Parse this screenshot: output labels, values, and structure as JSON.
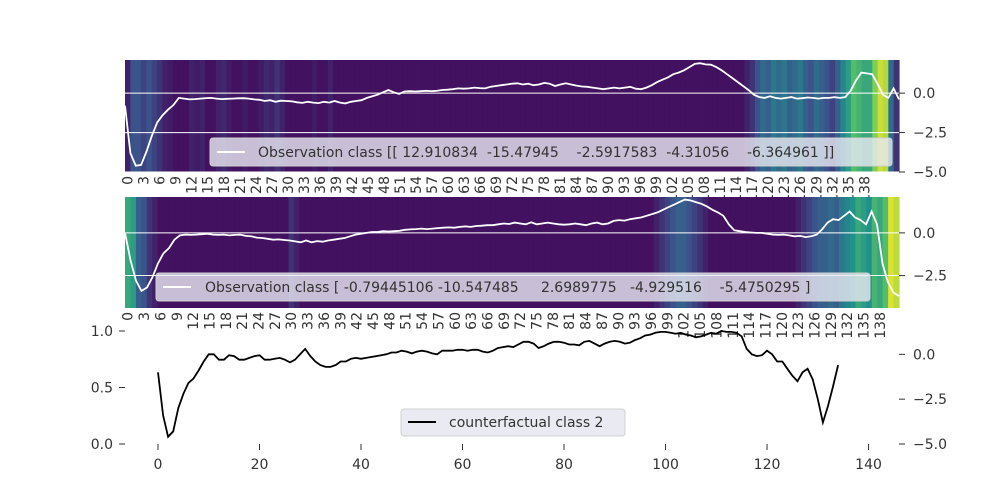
{
  "figure": {
    "background": "#ffffff"
  },
  "chart_data": [
    {
      "type": "heatmap",
      "panel": "top",
      "legend": {
        "label": "Observation class [[ 12.910834  -15.47945    -2.5917583  -4.31056    -6.364961 ]]",
        "placement": "lower-right"
      },
      "series": [
        {
          "name": "Observation class [[ 12.910834  -15.47945    -2.5917583  -4.31056    -6.364961 ]]",
          "color": "#ffffff",
          "values": [
            -0.8,
            -3.8,
            -4.6,
            -4.55,
            -3.7,
            -2.7,
            -1.85,
            -1.4,
            -1.05,
            -0.75,
            -0.3,
            -0.35,
            -0.4,
            -0.38,
            -0.35,
            -0.32,
            -0.3,
            -0.35,
            -0.38,
            -0.36,
            -0.35,
            -0.33,
            -0.32,
            -0.35,
            -0.4,
            -0.42,
            -0.5,
            -0.45,
            -0.55,
            -0.48,
            -0.5,
            -0.52,
            -0.58,
            -0.62,
            -0.55,
            -0.6,
            -0.63,
            -0.55,
            -0.6,
            -0.5,
            -0.6,
            -0.65,
            -0.55,
            -0.5,
            -0.45,
            -0.3,
            -0.2,
            -0.1,
            0.05,
            0.2,
            0.05,
            -0.05,
            0.1,
            0.12,
            0.1,
            0.12,
            0.15,
            0.12,
            0.15,
            0.2,
            0.22,
            0.25,
            0.3,
            0.28,
            0.3,
            0.35,
            0.32,
            0.3,
            0.4,
            0.45,
            0.5,
            0.55,
            0.6,
            0.62,
            0.55,
            0.6,
            0.5,
            0.55,
            0.65,
            0.6,
            0.45,
            0.55,
            0.62,
            0.55,
            0.48,
            0.42,
            0.4,
            0.35,
            0.3,
            0.25,
            0.3,
            0.35,
            0.3,
            0.35,
            0.4,
            0.28,
            0.25,
            0.35,
            0.5,
            0.7,
            0.85,
            1.0,
            1.2,
            1.3,
            1.45,
            1.65,
            1.85,
            1.9,
            1.82,
            1.8,
            1.65,
            1.45,
            1.2,
            0.95,
            0.7,
            0.45,
            0.2,
            -0.1,
            -0.25,
            -0.3,
            -0.2,
            -0.3,
            -0.35,
            -0.3,
            -0.25,
            -0.35,
            -0.32,
            -0.28,
            -0.3,
            -0.35,
            -0.3,
            -0.3,
            -0.25,
            -0.3,
            -0.25,
            0.15,
            0.8,
            1.3,
            1.25,
            1.2,
            0.6,
            -0.1,
            -0.3,
            0.3,
            -0.4
          ]
        }
      ],
      "heat_levels": [
        0.1,
        0.25,
        0.25,
        0.2,
        0.25,
        0.2,
        0.15,
        0.1,
        0.08,
        0.05,
        0.05,
        0.05,
        0.1,
        0.08,
        0.1,
        0.05,
        0.05,
        0.1,
        0.12,
        0.08,
        0.05,
        0.05,
        0.08,
        0.05,
        0.05,
        0.08,
        0.12,
        0.1,
        0.15,
        0.1,
        0.05,
        0.05,
        0.05,
        0.05,
        0.05,
        0.08,
        0.05,
        0.05,
        0.1,
        0.05,
        0.05,
        0.05,
        0.05,
        0.05,
        0.05,
        0.05,
        0.05,
        0.05,
        0.05,
        0.05,
        0.05,
        0.05,
        0.05,
        0.05,
        0.05,
        0.05,
        0.05,
        0.05,
        0.05,
        0.05,
        0.05,
        0.05,
        0.05,
        0.05,
        0.05,
        0.05,
        0.05,
        0.05,
        0.05,
        0.05,
        0.05,
        0.05,
        0.05,
        0.05,
        0.05,
        0.05,
        0.05,
        0.05,
        0.05,
        0.05,
        0.05,
        0.05,
        0.05,
        0.05,
        0.05,
        0.05,
        0.05,
        0.05,
        0.05,
        0.05,
        0.05,
        0.05,
        0.05,
        0.05,
        0.05,
        0.05,
        0.05,
        0.05,
        0.05,
        0.05,
        0.05,
        0.05,
        0.05,
        0.05,
        0.05,
        0.05,
        0.05,
        0.05,
        0.05,
        0.05,
        0.05,
        0.05,
        0.05,
        0.05,
        0.05,
        0.05,
        0.1,
        0.15,
        0.25,
        0.35,
        0.3,
        0.4,
        0.35,
        0.4,
        0.3,
        0.35,
        0.4,
        0.3,
        0.25,
        0.35,
        0.3,
        0.25,
        0.2,
        0.3,
        0.45,
        0.55,
        0.7,
        0.65,
        0.6,
        0.6,
        0.8,
        0.92,
        0.88,
        0.35,
        0.15
      ],
      "y_ticks": [
        "0.0",
        "−2.5",
        "−5.0"
      ],
      "y_tick_values": [
        0,
        -2.5,
        -5
      ],
      "ylim": [
        -5,
        2.1
      ],
      "x_tick_labels": [
        "0",
        "3",
        "6",
        "9",
        "12",
        "15",
        "18",
        "21",
        "24",
        "27",
        "30",
        "33",
        "36",
        "39",
        "42",
        "45",
        "48",
        "51",
        "54",
        "57",
        "60",
        "63",
        "66",
        "69",
        "72",
        "75",
        "78",
        "81",
        "84",
        "87",
        "90",
        "93",
        "96",
        "99",
        "102",
        "105",
        "108",
        "111",
        "114",
        "117",
        "120",
        "123",
        "126",
        "129",
        "132",
        "135",
        "138"
      ],
      "grid": true
    },
    {
      "type": "heatmap",
      "panel": "middle",
      "legend": {
        "label": "Observation class [ -0.79445106 -10.547485     2.6989775   -4.929516    -5.4750295 ]",
        "placement": "lower-center"
      },
      "series": [
        {
          "name": "Observation class [ -0.79445106 -10.547485     2.6989775   -4.929516    -5.4750295 ]",
          "color": "#ffffff",
          "values": [
            0.0,
            -1.6,
            -2.8,
            -3.4,
            -3.2,
            -2.6,
            -1.8,
            -1.2,
            -0.9,
            -0.4,
            -0.15,
            -0.1,
            -0.12,
            -0.1,
            -0.08,
            -0.05,
            -0.1,
            -0.12,
            -0.1,
            -0.15,
            -0.12,
            -0.1,
            -0.18,
            -0.2,
            -0.28,
            -0.3,
            -0.35,
            -0.4,
            -0.38,
            -0.42,
            -0.45,
            -0.5,
            -0.55,
            -0.45,
            -0.55,
            -0.48,
            -0.52,
            -0.45,
            -0.4,
            -0.35,
            -0.3,
            -0.2,
            -0.1,
            -0.05,
            0.0,
            0.05,
            0.05,
            0.1,
            0.08,
            0.1,
            0.12,
            0.18,
            0.2,
            0.22,
            0.25,
            0.22,
            0.25,
            0.28,
            0.3,
            0.32,
            0.3,
            0.35,
            0.38,
            0.35,
            0.4,
            0.42,
            0.45,
            0.45,
            0.5,
            0.55,
            0.52,
            0.6,
            0.55,
            0.5,
            0.62,
            0.5,
            0.55,
            0.6,
            0.55,
            0.5,
            0.48,
            0.5,
            0.55,
            0.5,
            0.45,
            0.55,
            0.6,
            0.5,
            0.55,
            0.7,
            0.75,
            0.72,
            0.8,
            0.85,
            0.9,
            1.0,
            1.1,
            1.2,
            1.35,
            1.5,
            1.65,
            1.8,
            1.95,
            1.9,
            1.8,
            1.7,
            1.55,
            1.35,
            1.2,
            1.0,
            0.5,
            0.15,
            0.1,
            0.05,
            0.02,
            0.0,
            0.0,
            -0.05,
            -0.1,
            -0.12,
            -0.1,
            -0.15,
            -0.2,
            -0.18,
            -0.25,
            -0.2,
            -0.1,
            0.2,
            0.6,
            0.8,
            0.75,
            1.0,
            1.25,
            0.9,
            0.75,
            0.5,
            1.25,
            0.5,
            -1.8,
            -2.9,
            -3.5,
            -3.7
          ]
        }
      ],
      "heat_levels": [
        0.6,
        0.55,
        0.3,
        0.25,
        0.15,
        0.1,
        0.05,
        0.05,
        0.05,
        0.05,
        0.05,
        0.05,
        0.05,
        0.05,
        0.05,
        0.05,
        0.05,
        0.05,
        0.05,
        0.05,
        0.05,
        0.05,
        0.05,
        0.05,
        0.05,
        0.05,
        0.05,
        0.05,
        0.05,
        0.05,
        0.15,
        0.1,
        0.05,
        0.05,
        0.05,
        0.05,
        0.05,
        0.05,
        0.05,
        0.05,
        0.05,
        0.05,
        0.05,
        0.05,
        0.05,
        0.05,
        0.05,
        0.05,
        0.05,
        0.05,
        0.05,
        0.05,
        0.05,
        0.05,
        0.05,
        0.05,
        0.05,
        0.05,
        0.05,
        0.05,
        0.05,
        0.05,
        0.05,
        0.05,
        0.05,
        0.05,
        0.05,
        0.05,
        0.05,
        0.05,
        0.05,
        0.05,
        0.05,
        0.05,
        0.05,
        0.05,
        0.05,
        0.05,
        0.05,
        0.05,
        0.05,
        0.05,
        0.05,
        0.05,
        0.05,
        0.05,
        0.05,
        0.05,
        0.05,
        0.05,
        0.05,
        0.05,
        0.05,
        0.05,
        0.05,
        0.05,
        0.05,
        0.1,
        0.15,
        0.2,
        0.25,
        0.3,
        0.3,
        0.25,
        0.2,
        0.15,
        0.1,
        0.05,
        0.05,
        0.05,
        0.05,
        0.05,
        0.05,
        0.05,
        0.05,
        0.05,
        0.05,
        0.05,
        0.05,
        0.05,
        0.05,
        0.05,
        0.05,
        0.1,
        0.15,
        0.2,
        0.25,
        0.3,
        0.3,
        0.35,
        0.3,
        0.4,
        0.45,
        0.5,
        0.6,
        0.55,
        0.5,
        0.65,
        0.6,
        0.7,
        0.95,
        0.9
      ],
      "y_ticks": [
        "0.0",
        "−2.5"
      ],
      "y_tick_values": [
        0,
        -2.5
      ],
      "ylim": [
        -4.4,
        2.1
      ],
      "x_tick_labels": [
        "0",
        "3",
        "6",
        "9",
        "12",
        "15",
        "18",
        "21",
        "24",
        "27",
        "30",
        "33",
        "36",
        "39",
        "42",
        "45",
        "48",
        "51",
        "54",
        "57",
        "60",
        "63",
        "66",
        "69",
        "72",
        "75",
        "78",
        "81",
        "84",
        "87",
        "90",
        "93",
        "96",
        "99",
        "102",
        "105",
        "108",
        "111",
        "114",
        "117",
        "120",
        "123",
        "126",
        "129",
        "132",
        "135",
        "138"
      ],
      "grid": true
    },
    {
      "type": "line",
      "panel": "bottom",
      "legend": {
        "label": "counterfactual class 2",
        "placement": "lower-center"
      },
      "series": [
        {
          "name": "counterfactual class 2",
          "color": "#000000",
          "values": [
            -1.0,
            -3.4,
            -4.6,
            -4.3,
            -3.0,
            -2.2,
            -1.6,
            -1.35,
            -0.9,
            -0.4,
            0.0,
            0.0,
            -0.3,
            -0.3,
            -0.05,
            -0.1,
            -0.3,
            -0.3,
            -0.2,
            -0.1,
            -0.05,
            -0.3,
            -0.3,
            -0.25,
            -0.2,
            -0.3,
            -0.45,
            -0.3,
            0.0,
            0.3,
            -0.1,
            -0.4,
            -0.6,
            -0.7,
            -0.7,
            -0.6,
            -0.4,
            -0.4,
            -0.25,
            -0.2,
            -0.25,
            -0.2,
            -0.15,
            -0.1,
            -0.05,
            0.0,
            0.1,
            0.1,
            0.2,
            0.15,
            0.05,
            0.15,
            0.2,
            0.15,
            0.05,
            0.0,
            0.2,
            0.2,
            0.2,
            0.25,
            0.25,
            0.2,
            0.25,
            0.25,
            0.15,
            0.1,
            0.2,
            0.35,
            0.4,
            0.45,
            0.4,
            0.55,
            0.7,
            0.7,
            0.6,
            0.35,
            0.45,
            0.6,
            0.7,
            0.7,
            0.65,
            0.55,
            0.55,
            0.5,
            0.7,
            0.75,
            0.6,
            0.45,
            0.6,
            0.7,
            0.75,
            0.7,
            0.6,
            0.65,
            0.8,
            0.9,
            1.05,
            1.1,
            1.2,
            1.25,
            1.25,
            1.2,
            1.15,
            1.2,
            1.1,
            1.05,
            0.95,
            1.0,
            1.1,
            1.2,
            1.15,
            1.3,
            1.25,
            1.25,
            1.2,
            1.0,
            0.3,
            0.0,
            -0.1,
            -0.05,
            0.2,
            0.0,
            -0.4,
            -0.4,
            -0.8,
            -1.2,
            -1.5,
            -1.0,
            -0.8,
            -1.4,
            -2.5,
            -3.8,
            -2.9,
            -1.8,
            -0.6
          ]
        }
      ],
      "xlim": [
        -6.5,
        146
      ],
      "x_ticks": [
        0,
        20,
        40,
        60,
        80,
        100,
        120,
        140
      ],
      "x_tick_labels": [
        "0",
        "20",
        "40",
        "60",
        "80",
        "100",
        "120",
        "140"
      ],
      "y_left_ticks": [
        "0.0",
        "0.5",
        "1.0"
      ],
      "y_left_tick_values": [
        0,
        0.5,
        1.0
      ],
      "y_right_ticks": [
        "0.0",
        "−2.5",
        "−5.0"
      ],
      "y_right_tick_values": [
        0,
        -2.5,
        -5
      ],
      "ylim_left": [
        0,
        1
      ],
      "ylim_right": [
        -5,
        1.3
      ],
      "grid": false
    }
  ]
}
